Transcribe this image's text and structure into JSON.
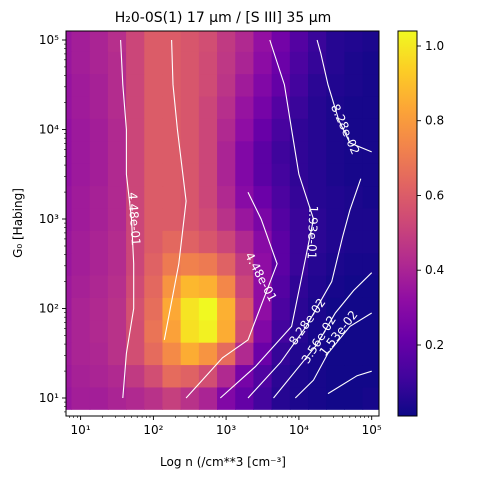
{
  "chart_data": {
    "type": "heatmap",
    "title": "H$_2$0-0S(1) 17 $\\mu$m / [S III] 35 $\\mu$m",
    "title_display": "H₂0-0S(1) 17 μm / [S III] 35 μm",
    "xlabel": "Log n (/cm**3 [cm⁻³]",
    "ylabel": "G₀ [Habing]",
    "x_scale": "log",
    "y_scale": "log",
    "xlim": [
      6.3,
      126000
    ],
    "ylim": [
      6.3,
      126000
    ],
    "x_ticks": [
      {
        "value": 10,
        "label": "10¹"
      },
      {
        "value": 100,
        "label": "10²"
      },
      {
        "value": 1000,
        "label": "10³"
      },
      {
        "value": 10000,
        "label": "10⁴"
      },
      {
        "value": 100000,
        "label": "10⁵"
      }
    ],
    "y_ticks": [
      {
        "value": 10,
        "label": "10¹"
      },
      {
        "value": 100,
        "label": "10²"
      },
      {
        "value": 1000,
        "label": "10³"
      },
      {
        "value": 10000,
        "label": "10⁴"
      },
      {
        "value": 100000,
        "label": "10⁵"
      }
    ],
    "grid": false,
    "colormap": "plasma",
    "colorbar": {
      "vmin": 0.01,
      "vmax": 1.04,
      "ticks": [
        {
          "value": 0.2,
          "label": "0.2"
        },
        {
          "value": 0.4,
          "label": "0.4"
        },
        {
          "value": 0.6,
          "label": "0.6"
        },
        {
          "value": 0.8,
          "label": "0.8"
        },
        {
          "value": 1.0,
          "label": "1.0"
        }
      ]
    },
    "log_n_centers": [
      0.75,
      1.0,
      1.25,
      1.5,
      1.75,
      2.0,
      2.25,
      2.5,
      2.75,
      3.0,
      3.25,
      3.5,
      3.75,
      4.0,
      4.25,
      4.5,
      4.75,
      5.0
    ],
    "log_g0_centers": [
      1.0,
      1.25,
      1.5,
      1.75,
      2.0,
      2.25,
      2.5,
      2.75,
      3.0,
      3.25,
      3.5,
      3.75,
      4.0,
      4.25,
      4.5,
      4.75,
      5.0
    ],
    "values": [
      [
        0.35,
        0.38,
        0.38,
        0.4,
        0.42,
        0.45,
        0.5,
        0.45,
        0.4,
        0.28,
        0.2,
        0.12,
        0.06,
        0.04,
        0.03,
        0.02,
        0.02,
        0.03
      ],
      [
        0.36,
        0.39,
        0.4,
        0.42,
        0.48,
        0.55,
        0.65,
        0.62,
        0.55,
        0.42,
        0.25,
        0.15,
        0.07,
        0.04,
        0.03,
        0.02,
        0.02,
        0.02
      ],
      [
        0.37,
        0.4,
        0.41,
        0.45,
        0.55,
        0.65,
        0.75,
        0.85,
        0.78,
        0.65,
        0.42,
        0.22,
        0.09,
        0.05,
        0.03,
        0.02,
        0.02,
        0.02
      ],
      [
        0.37,
        0.4,
        0.42,
        0.45,
        0.55,
        0.68,
        0.82,
        0.98,
        1.02,
        0.85,
        0.55,
        0.28,
        0.12,
        0.06,
        0.03,
        0.02,
        0.02,
        0.02
      ],
      [
        0.36,
        0.4,
        0.42,
        0.45,
        0.56,
        0.66,
        0.84,
        0.99,
        1.04,
        0.86,
        0.58,
        0.32,
        0.14,
        0.07,
        0.04,
        0.02,
        0.02,
        0.02
      ],
      [
        0.36,
        0.39,
        0.41,
        0.44,
        0.54,
        0.64,
        0.78,
        0.88,
        0.86,
        0.74,
        0.52,
        0.32,
        0.16,
        0.08,
        0.05,
        0.03,
        0.02,
        0.02
      ],
      [
        0.35,
        0.38,
        0.4,
        0.43,
        0.52,
        0.62,
        0.7,
        0.72,
        0.7,
        0.62,
        0.48,
        0.32,
        0.18,
        0.1,
        0.06,
        0.04,
        0.03,
        0.03
      ],
      [
        0.35,
        0.38,
        0.4,
        0.43,
        0.52,
        0.6,
        0.64,
        0.62,
        0.58,
        0.52,
        0.42,
        0.3,
        0.18,
        0.1,
        0.07,
        0.05,
        0.04,
        0.04
      ],
      [
        0.34,
        0.37,
        0.39,
        0.42,
        0.52,
        0.6,
        0.6,
        0.58,
        0.54,
        0.45,
        0.35,
        0.26,
        0.16,
        0.1,
        0.07,
        0.05,
        0.04,
        0.04
      ],
      [
        0.34,
        0.37,
        0.39,
        0.42,
        0.52,
        0.6,
        0.6,
        0.58,
        0.52,
        0.42,
        0.3,
        0.22,
        0.14,
        0.09,
        0.06,
        0.05,
        0.04,
        0.03
      ],
      [
        0.33,
        0.36,
        0.38,
        0.42,
        0.52,
        0.6,
        0.6,
        0.58,
        0.52,
        0.4,
        0.28,
        0.18,
        0.12,
        0.08,
        0.06,
        0.04,
        0.03,
        0.03
      ],
      [
        0.33,
        0.36,
        0.38,
        0.42,
        0.52,
        0.6,
        0.6,
        0.58,
        0.52,
        0.4,
        0.28,
        0.18,
        0.11,
        0.08,
        0.06,
        0.04,
        0.03,
        0.03
      ],
      [
        0.33,
        0.36,
        0.38,
        0.42,
        0.52,
        0.6,
        0.6,
        0.58,
        0.52,
        0.42,
        0.32,
        0.21,
        0.13,
        0.08,
        0.06,
        0.04,
        0.03,
        0.03
      ],
      [
        0.34,
        0.37,
        0.39,
        0.43,
        0.52,
        0.6,
        0.6,
        0.58,
        0.52,
        0.44,
        0.34,
        0.25,
        0.16,
        0.1,
        0.06,
        0.04,
        0.03,
        0.03
      ],
      [
        0.34,
        0.37,
        0.39,
        0.43,
        0.52,
        0.6,
        0.6,
        0.58,
        0.54,
        0.46,
        0.37,
        0.28,
        0.2,
        0.12,
        0.07,
        0.05,
        0.04,
        0.03
      ],
      [
        0.35,
        0.38,
        0.4,
        0.43,
        0.52,
        0.6,
        0.6,
        0.58,
        0.54,
        0.47,
        0.4,
        0.31,
        0.22,
        0.14,
        0.09,
        0.06,
        0.04,
        0.03
      ],
      [
        0.35,
        0.38,
        0.4,
        0.44,
        0.52,
        0.6,
        0.6,
        0.58,
        0.55,
        0.48,
        0.42,
        0.33,
        0.24,
        0.16,
        0.1,
        0.06,
        0.05,
        0.04
      ]
    ],
    "contours": [
      {
        "label": "4.48e-01",
        "segments": [
          [
            [
              1.58,
              1.0
            ],
            [
              1.63,
              1.5
            ],
            [
              1.73,
              2.0
            ],
            [
              1.73,
              2.5
            ],
            [
              1.7,
              3.0
            ],
            [
              1.63,
              3.5
            ],
            [
              1.63,
              4.0
            ],
            [
              1.58,
              4.5
            ],
            [
              1.55,
              5.0
            ]
          ]
        ]
      },
      {
        "label": "4.48e-01",
        "segments": [
          [
            [
              2.15,
              1.65
            ],
            [
              2.35,
              2.5
            ],
            [
              2.45,
              3.2
            ],
            [
              2.33,
              4.0
            ],
            [
              2.27,
              4.5
            ],
            [
              2.25,
              5.0
            ]
          ]
        ]
      },
      {
        "label": "4.48e-01",
        "segments": [
          [
            [
              2.45,
              1.0
            ],
            [
              2.95,
              1.45
            ],
            [
              3.3,
              1.65
            ],
            [
              3.7,
              2.5
            ],
            [
              3.48,
              3.0
            ],
            [
              3.3,
              3.3
            ]
          ]
        ]
      },
      {
        "label": "1.93e-01",
        "segments": [
          [
            [
              2.92,
              1.0
            ],
            [
              3.4,
              1.35
            ],
            [
              3.9,
              1.8
            ],
            [
              4.05,
              2.4
            ],
            [
              4.2,
              3.0
            ],
            [
              4.0,
              3.5
            ],
            [
              3.9,
              4.0
            ],
            [
              3.8,
              4.5
            ],
            [
              3.6,
              5.0
            ]
          ]
        ]
      },
      {
        "label": "8.28e-02",
        "segments": [
          [
            [
              3.3,
              1.0
            ],
            [
              3.75,
              1.4
            ],
            [
              4.1,
              1.8
            ],
            [
              4.45,
              2.3
            ],
            [
              4.6,
              2.8
            ],
            [
              4.7,
              3.1
            ],
            [
              4.85,
              3.45
            ]
          ],
          [
            [
              5.0,
              3.75
            ],
            [
              4.7,
              3.85
            ],
            [
              4.55,
              4.1
            ],
            [
              4.4,
              4.5
            ],
            [
              4.3,
              4.85
            ],
            [
              4.25,
              5.0
            ]
          ]
        ]
      },
      {
        "label": "3.56e-02",
        "segments": [
          [
            [
              3.65,
              1.0
            ],
            [
              3.95,
              1.3
            ],
            [
              4.25,
              1.6
            ],
            [
              4.5,
              1.95
            ],
            [
              4.75,
              2.2
            ],
            [
              5.0,
              2.4
            ]
          ]
        ]
      },
      {
        "label": "1.53e-02",
        "segments": [
          [
            [
              3.95,
              1.0
            ],
            [
              4.2,
              1.2
            ],
            [
              4.4,
              1.5
            ],
            [
              4.7,
              1.8
            ],
            [
              5.0,
              1.95
            ]
          ]
        ]
      },
      {
        "label": "",
        "segments": [
          [
            [
              4.4,
              1.05
            ],
            [
              4.8,
              1.25
            ],
            [
              5.0,
              1.3
            ]
          ]
        ]
      }
    ],
    "contour_labels": [
      {
        "text": "4.48e-01",
        "x": 1.73,
        "y": 3.0,
        "angle": 86
      },
      {
        "text": "4.48e-01",
        "x": 3.47,
        "y": 2.35,
        "angle": 62
      },
      {
        "text": "1.93e-01",
        "x": 4.18,
        "y": 2.85,
        "angle": 92
      },
      {
        "text": "8.28e-02",
        "x": 4.63,
        "y": 4.0,
        "angle": 66
      },
      {
        "text": "8.28e-02",
        "x": 4.12,
        "y": 1.85,
        "angle": -55
      },
      {
        "text": "3.56e-02",
        "x": 4.28,
        "y": 1.65,
        "angle": -58
      },
      {
        "text": "1.53e-02",
        "x": 4.55,
        "y": 1.72,
        "angle": -52
      }
    ]
  }
}
